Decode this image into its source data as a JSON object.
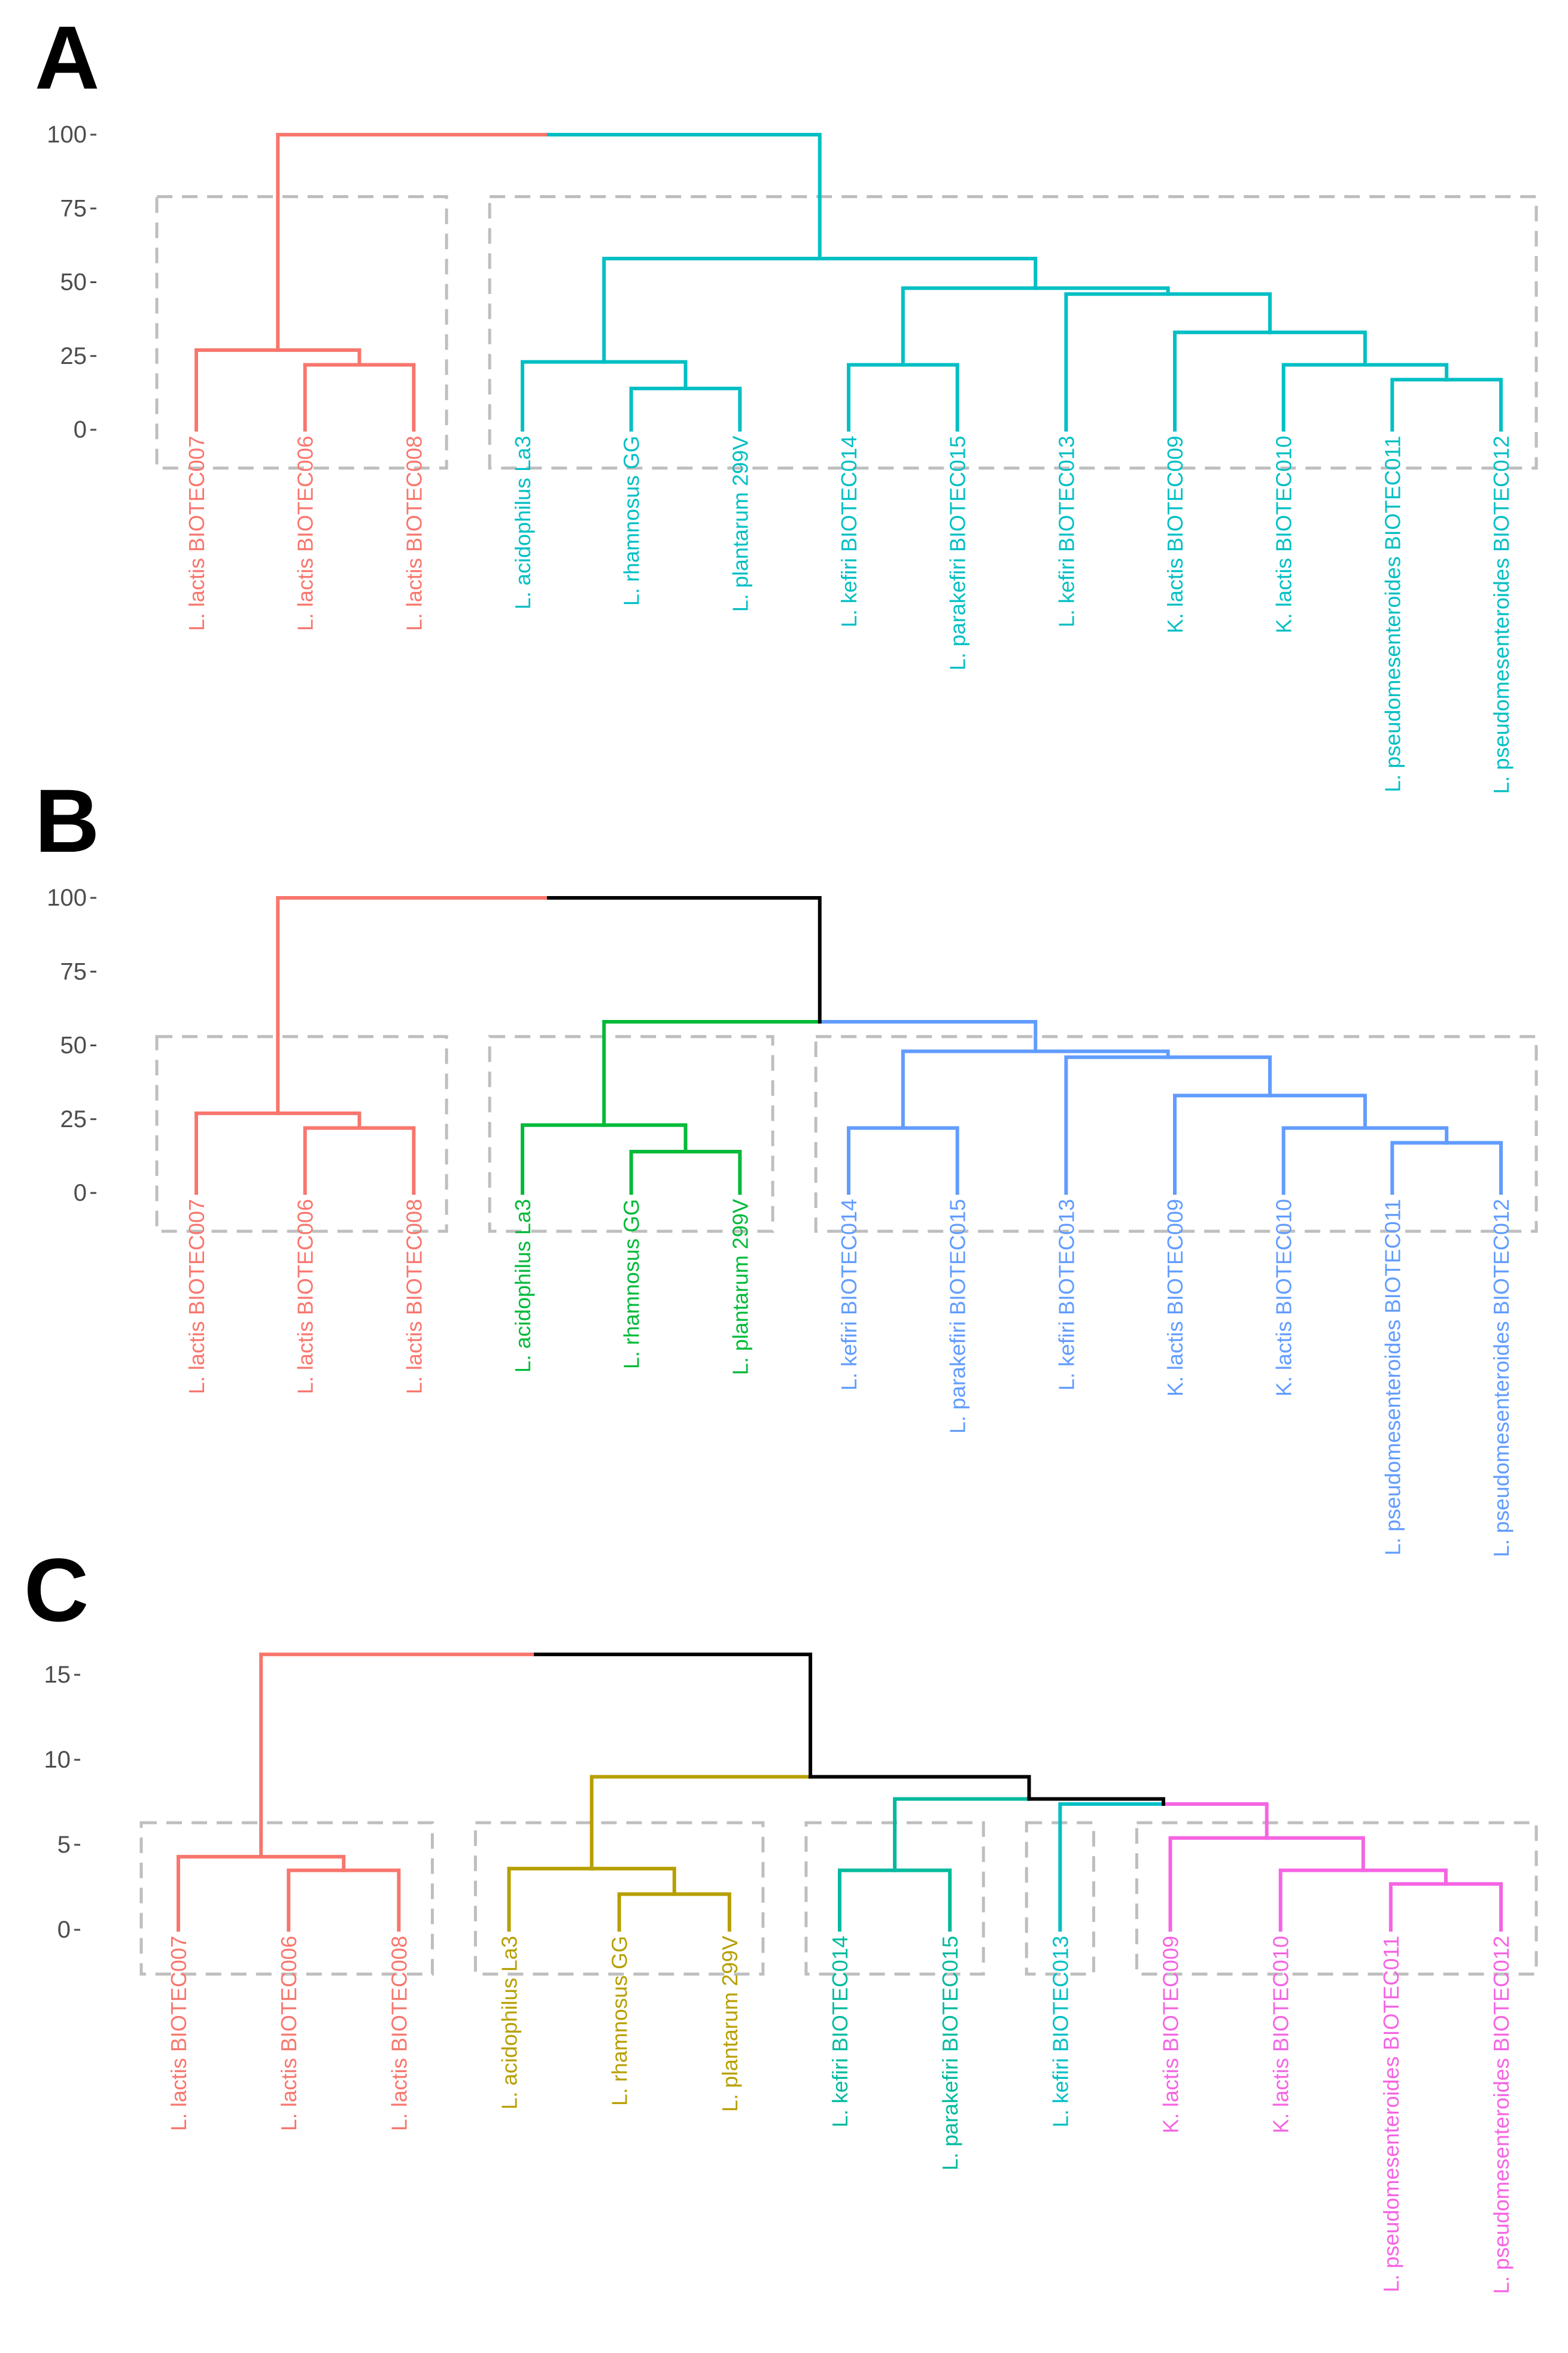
{
  "colors": {
    "red": "#F8766D",
    "cyan": "#00BFC4",
    "green": "#00BA38",
    "blue": "#619CFF",
    "olive": "#B79F00",
    "teal": "#00BA9E",
    "magenta": "#F564E3",
    "black": "#000000",
    "box": "#BEBEBE"
  },
  "chart_data": [
    {
      "type": "dendrogram",
      "panel": "A",
      "yticks": [
        100,
        75,
        50,
        25,
        0
      ],
      "ylim": [
        0,
        100
      ],
      "leaves": [
        {
          "label": "L. lactis BIOTEC007",
          "color": "red"
        },
        {
          "label": "L. lactis BIOTEC006",
          "color": "red"
        },
        {
          "label": "L. lactis BIOTEC008",
          "color": "red"
        },
        {
          "label": "L. acidophilus La3",
          "color": "cyan"
        },
        {
          "label": "L. rhamnosus GG",
          "color": "cyan"
        },
        {
          "label": "L. plantarum 299V",
          "color": "cyan"
        },
        {
          "label": "L. kefiri BIOTEC014",
          "color": "cyan"
        },
        {
          "label": "L. parakefiri BIOTEC015",
          "color": "cyan"
        },
        {
          "label": "L. kefiri BIOTEC013",
          "color": "cyan"
        },
        {
          "label": "K. lactis BIOTEC009",
          "color": "cyan"
        },
        {
          "label": "K. lactis BIOTEC010",
          "color": "cyan"
        },
        {
          "label": "L. pseudomesenteroides BIOTEC011",
          "color": "cyan"
        },
        {
          "label": "L. pseudomesenteroides BIOTEC012",
          "color": "cyan"
        }
      ],
      "merges": [
        {
          "left": "L1",
          "right": "L2",
          "height": 22,
          "color": "red"
        },
        {
          "left": "L0",
          "right": "N0",
          "height": 27,
          "color": "red"
        },
        {
          "left": "L4",
          "right": "L5",
          "height": 14,
          "color": "cyan"
        },
        {
          "left": "L3",
          "right": "N2",
          "height": 23,
          "color": "cyan"
        },
        {
          "left": "L6",
          "right": "L7",
          "height": 22,
          "color": "cyan"
        },
        {
          "left": "L11",
          "right": "L12",
          "height": 17,
          "color": "cyan"
        },
        {
          "left": "L10",
          "right": "N5",
          "height": 22,
          "color": "cyan"
        },
        {
          "left": "L9",
          "right": "N6",
          "height": 33,
          "color": "cyan"
        },
        {
          "left": "L8",
          "right": "N7",
          "height": 46,
          "color": "cyan"
        },
        {
          "left": "N4",
          "right": "N8",
          "height": 48,
          "color": "cyan"
        },
        {
          "left": "N3",
          "right": "N9",
          "height": 58,
          "color": "cyan"
        },
        {
          "left": "N1",
          "right": "N10",
          "height": 100,
          "color": "split",
          "left_color": "red",
          "right_color": "cyan"
        }
      ],
      "cluster_boxes": [
        [
          0,
          2
        ],
        [
          3,
          12
        ]
      ],
      "box_top": 79
    },
    {
      "type": "dendrogram",
      "panel": "B",
      "yticks": [
        100,
        75,
        50,
        25,
        0
      ],
      "ylim": [
        0,
        100
      ],
      "leaves": [
        {
          "label": "L. lactis BIOTEC007",
          "color": "red"
        },
        {
          "label": "L. lactis BIOTEC006",
          "color": "red"
        },
        {
          "label": "L. lactis BIOTEC008",
          "color": "red"
        },
        {
          "label": "L. acidophilus La3",
          "color": "green"
        },
        {
          "label": "L. rhamnosus GG",
          "color": "green"
        },
        {
          "label": "L. plantarum 299V",
          "color": "green"
        },
        {
          "label": "L. kefiri BIOTEC014",
          "color": "blue"
        },
        {
          "label": "L. parakefiri BIOTEC015",
          "color": "blue"
        },
        {
          "label": "L. kefiri BIOTEC013",
          "color": "blue"
        },
        {
          "label": "K. lactis BIOTEC009",
          "color": "blue"
        },
        {
          "label": "K. lactis BIOTEC010",
          "color": "blue"
        },
        {
          "label": "L. pseudomesenteroides BIOTEC011",
          "color": "blue"
        },
        {
          "label": "L. pseudomesenteroides BIOTEC012",
          "color": "blue"
        }
      ],
      "merges": [
        {
          "left": "L1",
          "right": "L2",
          "height": 22,
          "color": "red"
        },
        {
          "left": "L0",
          "right": "N0",
          "height": 27,
          "color": "red"
        },
        {
          "left": "L4",
          "right": "L5",
          "height": 14,
          "color": "green"
        },
        {
          "left": "L3",
          "right": "N2",
          "height": 23,
          "color": "green"
        },
        {
          "left": "L6",
          "right": "L7",
          "height": 22,
          "color": "blue"
        },
        {
          "left": "L11",
          "right": "L12",
          "height": 17,
          "color": "blue"
        },
        {
          "left": "L10",
          "right": "N5",
          "height": 22,
          "color": "blue"
        },
        {
          "left": "L9",
          "right": "N6",
          "height": 33,
          "color": "blue"
        },
        {
          "left": "L8",
          "right": "N7",
          "height": 46,
          "color": "blue"
        },
        {
          "left": "N4",
          "right": "N8",
          "height": 48,
          "color": "blue"
        },
        {
          "left": "N3",
          "right": "N9",
          "height": 58,
          "color": "split",
          "left_color": "green",
          "right_color": "blue"
        },
        {
          "left": "N1",
          "right": "N10",
          "height": 100,
          "color": "split",
          "left_color": "red",
          "right_color": "black"
        }
      ],
      "cluster_boxes": [
        [
          0,
          2
        ],
        [
          3,
          5
        ],
        [
          6,
          12
        ]
      ],
      "box_top": 53
    },
    {
      "type": "dendrogram",
      "panel": "C",
      "yticks": [
        15,
        10,
        5,
        0
      ],
      "ylim": [
        0,
        15
      ],
      "leaves": [
        {
          "label": "L. lactis BIOTEC007",
          "color": "red"
        },
        {
          "label": "L. lactis BIOTEC006",
          "color": "red"
        },
        {
          "label": "L. lactis BIOTEC008",
          "color": "red"
        },
        {
          "label": "L. acidophilus La3",
          "color": "olive"
        },
        {
          "label": "L. rhamnosus GG",
          "color": "olive"
        },
        {
          "label": "L. plantarum 299V",
          "color": "olive"
        },
        {
          "label": "L. kefiri BIOTEC014",
          "color": "teal"
        },
        {
          "label": "L. parakefiri BIOTEC015",
          "color": "teal"
        },
        {
          "label": "L. kefiri BIOTEC013",
          "color": "cyan"
        },
        {
          "label": "K. lactis BIOTEC009",
          "color": "magenta"
        },
        {
          "label": "K. lactis BIOTEC010",
          "color": "magenta"
        },
        {
          "label": "L. pseudomesenteroides BIOTEC011",
          "color": "magenta"
        },
        {
          "label": "L. pseudomesenteroides BIOTEC012",
          "color": "magenta"
        }
      ],
      "merges": [
        {
          "left": "L1",
          "right": "L2",
          "height": 3.5,
          "color": "red"
        },
        {
          "left": "L0",
          "right": "N0",
          "height": 4.3,
          "color": "red"
        },
        {
          "left": "L4",
          "right": "L5",
          "height": 2.1,
          "color": "olive"
        },
        {
          "left": "L3",
          "right": "N2",
          "height": 3.6,
          "color": "olive"
        },
        {
          "left": "L6",
          "right": "L7",
          "height": 3.5,
          "color": "teal"
        },
        {
          "left": "L11",
          "right": "L12",
          "height": 2.7,
          "color": "magenta"
        },
        {
          "left": "L10",
          "right": "N5",
          "height": 3.5,
          "color": "magenta"
        },
        {
          "left": "L9",
          "right": "N6",
          "height": 5.4,
          "color": "magenta"
        },
        {
          "left": "L8",
          "right": "N7",
          "height": 7.4,
          "color": "split",
          "left_color": "cyan",
          "right_color": "magenta"
        },
        {
          "left": "N4",
          "right": "N8",
          "height": 7.7,
          "color": "split",
          "left_color": "teal",
          "right_color": "black"
        },
        {
          "left": "N3",
          "right": "N9",
          "height": 9.0,
          "color": "split",
          "left_color": "olive",
          "right_color": "black"
        },
        {
          "left": "N1",
          "right": "N10",
          "height": 16.2,
          "color": "split",
          "left_color": "red",
          "right_color": "black"
        }
      ],
      "cluster_boxes": [
        [
          0,
          2
        ],
        [
          3,
          5
        ],
        [
          6,
          7
        ],
        [
          8,
          8
        ],
        [
          9,
          12
        ]
      ],
      "box_top": 6.3
    }
  ]
}
